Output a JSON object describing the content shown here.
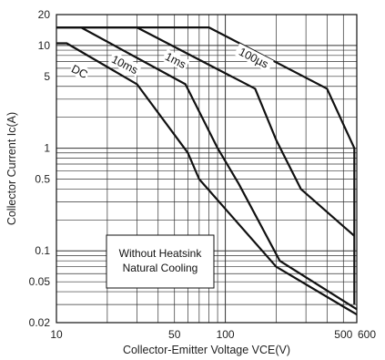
{
  "chart_data": {
    "type": "line",
    "title": "",
    "xlabel": "Collector-Emitter Voltage VCE(V)",
    "ylabel": "Collector Current Ic(A)",
    "xscale": "log",
    "yscale": "log",
    "xlim": [
      10,
      600
    ],
    "ylim": [
      0.02,
      20
    ],
    "x_ticks": [
      10,
      50,
      100,
      500,
      600
    ],
    "y_ticks": [
      20,
      10,
      5,
      1,
      0.5,
      0.1,
      0.05,
      0.02
    ],
    "grid": true,
    "legend": "none",
    "annotation": [
      "Without Heatsink",
      "Natural Cooling"
    ],
    "series": [
      {
        "name": "DC",
        "points": [
          [
            10,
            10.5
          ],
          [
            11.5,
            10.5
          ],
          [
            30,
            4.2
          ],
          [
            60,
            0.9
          ],
          [
            70,
            0.5
          ],
          [
            200,
            0.07
          ],
          [
            600,
            0.024
          ]
        ],
        "label_at": [
          13.5,
          5.3
        ]
      },
      {
        "name": "10ms",
        "points": [
          [
            10,
            15
          ],
          [
            14,
            15
          ],
          [
            58,
            4.2
          ],
          [
            90,
            1.0
          ],
          [
            120,
            0.45
          ],
          [
            210,
            0.08
          ],
          [
            600,
            0.027
          ]
        ],
        "label_at": [
          25,
          6.2
        ]
      },
      {
        "name": "1ms",
        "points": [
          [
            10,
            15
          ],
          [
            30,
            15
          ],
          [
            150,
            3.8
          ],
          [
            200,
            1.2
          ],
          [
            280,
            0.4
          ],
          [
            580,
            0.14
          ]
        ],
        "label_at": [
          50,
          6.8
        ]
      },
      {
        "name": "100µs",
        "points": [
          [
            10,
            15
          ],
          [
            80,
            15
          ],
          [
            400,
            3.8
          ],
          [
            580,
            1.0
          ],
          [
            580,
            0.03
          ]
        ],
        "label_at": [
          145,
          7.2
        ]
      }
    ]
  }
}
